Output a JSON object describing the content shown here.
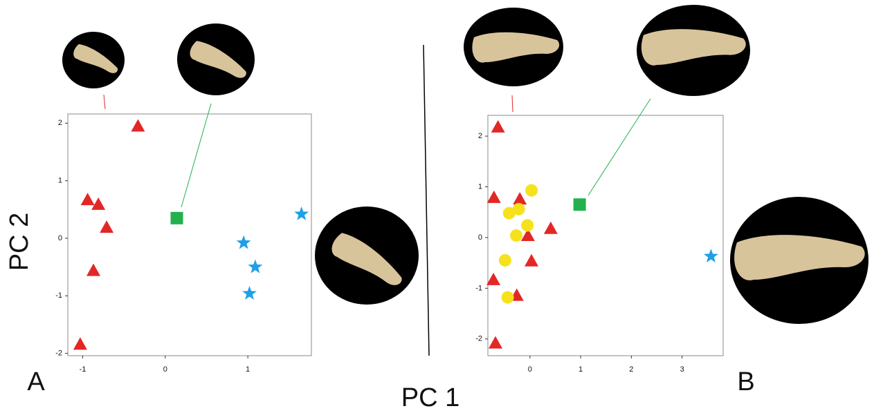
{
  "x_label": "PC 1",
  "y_label": "PC 2",
  "chart_data": [
    {
      "type": "scatter",
      "label": "A",
      "xlim": [
        -1.18,
        1.77
      ],
      "ylim": [
        -2.04,
        2.16
      ],
      "xticks": [
        -1,
        0,
        1
      ],
      "yticks": [
        -2,
        -1,
        0,
        1,
        2
      ],
      "series": [
        {
          "color": "#e32726",
          "marker": "triangle",
          "x": [
            -0.33,
            -0.94,
            -0.81,
            -0.71,
            -0.87,
            -1.03
          ],
          "values": [
            1.95,
            0.67,
            0.59,
            0.19,
            -0.56,
            -1.84
          ]
        },
        {
          "color": "#22b14c",
          "marker": "square",
          "x": [
            0.14
          ],
          "values": [
            0.35
          ]
        },
        {
          "color": "#1ea0e6",
          "marker": "star",
          "x": [
            1.65,
            0.95,
            1.09,
            1.02
          ],
          "values": [
            0.42,
            -0.08,
            -0.5,
            -0.96
          ]
        }
      ]
    },
    {
      "type": "scatter",
      "label": "B",
      "xlim": [
        -0.83,
        3.81
      ],
      "ylim": [
        -2.33,
        2.41
      ],
      "xticks": [
        0,
        1,
        2,
        3
      ],
      "yticks": [
        -2,
        -1,
        0,
        1,
        2
      ],
      "series": [
        {
          "color": "#e32726",
          "marker": "triangle",
          "x": [
            -0.63,
            -0.71,
            -0.2,
            0.41,
            -0.04,
            0.03,
            -0.72,
            -0.26,
            -0.68
          ],
          "values": [
            2.18,
            0.79,
            0.76,
            0.18,
            0.04,
            -0.46,
            -0.83,
            -1.14,
            -2.08
          ]
        },
        {
          "color": "#f5e21c",
          "marker": "circle",
          "x": [
            0.03,
            -0.41,
            -0.22,
            -0.05,
            -0.27,
            -0.49,
            -0.44
          ],
          "values": [
            0.93,
            0.48,
            0.56,
            0.24,
            0.04,
            -0.45,
            -1.18
          ]
        },
        {
          "color": "#22b14c",
          "marker": "square",
          "x": [
            0.98
          ],
          "values": [
            0.65
          ]
        },
        {
          "color": "#1ea0e6",
          "marker": "star",
          "x": [
            3.57
          ],
          "values": [
            -0.37
          ]
        }
      ]
    }
  ]
}
